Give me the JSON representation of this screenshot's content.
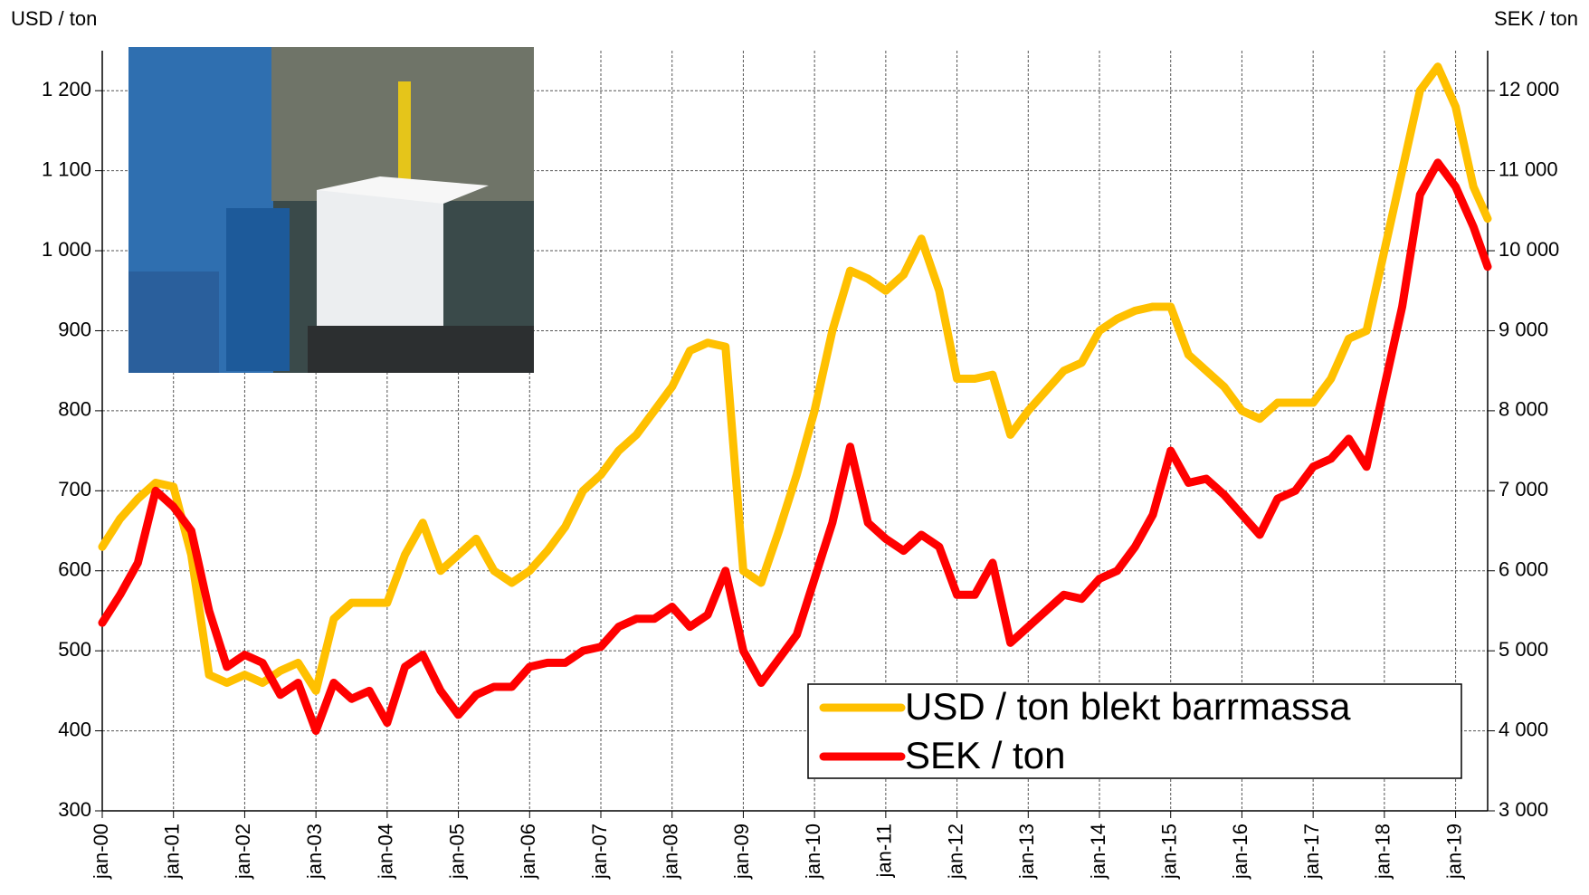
{
  "chart_data": {
    "type": "line",
    "y_label": "USD / ton",
    "y2_label": "SEK / ton",
    "x": [
      2000,
      2000.25,
      2000.5,
      2000.75,
      2001,
      2001.25,
      2001.5,
      2001.75,
      2002,
      2002.25,
      2002.5,
      2002.75,
      2003,
      2003.25,
      2003.5,
      2003.75,
      2004,
      2004.25,
      2004.5,
      2004.75,
      2005,
      2005.25,
      2005.5,
      2005.75,
      2006,
      2006.25,
      2006.5,
      2006.75,
      2007,
      2007.25,
      2007.5,
      2007.75,
      2008,
      2008.25,
      2008.5,
      2008.75,
      2009,
      2009.25,
      2009.5,
      2009.75,
      2010,
      2010.25,
      2010.5,
      2010.75,
      2011,
      2011.25,
      2011.5,
      2011.75,
      2012,
      2012.25,
      2012.5,
      2012.75,
      2013,
      2013.25,
      2013.5,
      2013.75,
      2014,
      2014.25,
      2014.5,
      2014.75,
      2015,
      2015.25,
      2015.5,
      2015.75,
      2016,
      2016.25,
      2016.5,
      2016.75,
      2017,
      2017.25,
      2017.5,
      2017.75,
      2018,
      2018.25,
      2018.5,
      2018.75,
      2019,
      2019.25,
      2019.45
    ],
    "series": [
      {
        "name": "USD / ton blekt barrmassa",
        "color": "#FFC000",
        "axis": "y",
        "values": [
          630,
          665,
          690,
          710,
          705,
          620,
          470,
          460,
          470,
          460,
          475,
          485,
          450,
          540,
          560,
          560,
          560,
          620,
          660,
          600,
          620,
          640,
          600,
          585,
          600,
          625,
          655,
          700,
          720,
          750,
          770,
          800,
          830,
          875,
          885,
          880,
          600,
          585,
          650,
          720,
          800,
          900,
          975,
          965,
          950,
          970,
          1015,
          950,
          840,
          840,
          845,
          770,
          800,
          825,
          850,
          860,
          900,
          915,
          925,
          930,
          930,
          870,
          850,
          830,
          800,
          790,
          810,
          810,
          810,
          840,
          890,
          900,
          1000,
          1100,
          1200,
          1230,
          1180,
          1080,
          1040
        ]
      },
      {
        "name": "SEK / ton",
        "color": "#FF0000",
        "axis": "y2",
        "values": [
          5350,
          5700,
          6100,
          7000,
          6800,
          6500,
          5500,
          4800,
          4950,
          4850,
          4450,
          4600,
          4000,
          4600,
          4400,
          4500,
          4100,
          4800,
          4950,
          4500,
          4200,
          4450,
          4550,
          4550,
          4800,
          4850,
          4850,
          5000,
          5050,
          5300,
          5400,
          5400,
          5550,
          5300,
          5450,
          6000,
          5000,
          4600,
          4900,
          5200,
          5900,
          6600,
          7550,
          6600,
          6400,
          6250,
          6450,
          6300,
          5700,
          5700,
          6100,
          5100,
          5300,
          5500,
          5700,
          5650,
          5900,
          6000,
          6300,
          6700,
          7500,
          7100,
          7150,
          6950,
          6700,
          6450,
          6900,
          7000,
          7300,
          7400,
          7650,
          7300,
          8300,
          9300,
          10700,
          11100,
          10800,
          10300,
          9800
        ]
      }
    ],
    "xlim": [
      2000,
      2019.45
    ],
    "xticks": [
      {
        "value": 2000,
        "label": "jan-00"
      },
      {
        "value": 2001,
        "label": "jan-01"
      },
      {
        "value": 2002,
        "label": "jan-02"
      },
      {
        "value": 2003,
        "label": "jan-03"
      },
      {
        "value": 2004,
        "label": "jan-04"
      },
      {
        "value": 2005,
        "label": "jan-05"
      },
      {
        "value": 2006,
        "label": "jan-06"
      },
      {
        "value": 2007,
        "label": "jan-07"
      },
      {
        "value": 2008,
        "label": "jan-08"
      },
      {
        "value": 2009,
        "label": "jan-09"
      },
      {
        "value": 2010,
        "label": "jan-10"
      },
      {
        "value": 2011,
        "label": "jan-11"
      },
      {
        "value": 2012,
        "label": "jan-12"
      },
      {
        "value": 2013,
        "label": "jan-13"
      },
      {
        "value": 2014,
        "label": "jan-14"
      },
      {
        "value": 2015,
        "label": "jan-15"
      },
      {
        "value": 2016,
        "label": "jan-16"
      },
      {
        "value": 2017,
        "label": "jan-17"
      },
      {
        "value": 2018,
        "label": "jan-18"
      },
      {
        "value": 2019,
        "label": "jan-19"
      }
    ],
    "ylim": [
      300,
      1250
    ],
    "yticks": [
      300,
      400,
      500,
      600,
      700,
      800,
      900,
      {
        "value": 1000,
        "label": "1 000"
      },
      {
        "value": 1100,
        "label": "1 100"
      },
      {
        "value": 1200,
        "label": "1 200"
      }
    ],
    "y2lim": [
      3000,
      12500
    ],
    "y2ticks": [
      {
        "value": 3000,
        "label": "3 000"
      },
      {
        "value": 4000,
        "label": "4 000"
      },
      {
        "value": 5000,
        "label": "5 000"
      },
      {
        "value": 6000,
        "label": "6 000"
      },
      {
        "value": 7000,
        "label": "7 000"
      },
      {
        "value": 8000,
        "label": "8 000"
      },
      {
        "value": 9000,
        "label": "9 000"
      },
      {
        "value": 10000,
        "label": "10 000"
      },
      {
        "value": 11000,
        "label": "11 000"
      },
      {
        "value": 12000,
        "label": "12 000"
      }
    ],
    "grid": true,
    "legend": "lower right"
  }
}
